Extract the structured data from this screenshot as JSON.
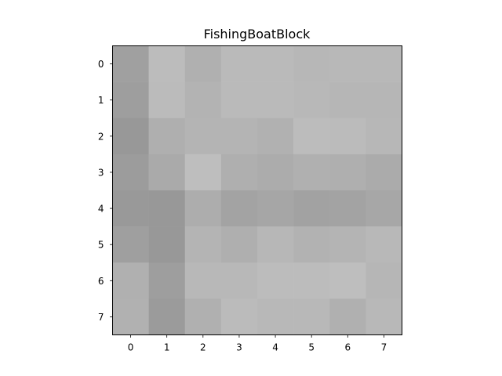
{
  "chart_data": {
    "type": "heatmap",
    "title": "FishingBoatBlock",
    "xlabel": "",
    "ylabel": "",
    "x_ticks": [
      "0",
      "1",
      "2",
      "3",
      "4",
      "5",
      "6",
      "7"
    ],
    "y_ticks": [
      "0",
      "1",
      "2",
      "3",
      "4",
      "5",
      "6",
      "7"
    ],
    "colormap": "gray",
    "grid": false,
    "values": [
      [
        160,
        188,
        176,
        186,
        186,
        183,
        184,
        184
      ],
      [
        158,
        187,
        179,
        186,
        186,
        184,
        182,
        182
      ],
      [
        152,
        175,
        180,
        180,
        177,
        188,
        187,
        183
      ],
      [
        156,
        170,
        190,
        175,
        172,
        176,
        175,
        171
      ],
      [
        153,
        152,
        173,
        163,
        166,
        162,
        163,
        167
      ],
      [
        159,
        152,
        180,
        175,
        183,
        178,
        180,
        184
      ],
      [
        176,
        158,
        184,
        184,
        188,
        188,
        190,
        182
      ],
      [
        177,
        155,
        176,
        187,
        184,
        184,
        176,
        184
      ]
    ]
  }
}
